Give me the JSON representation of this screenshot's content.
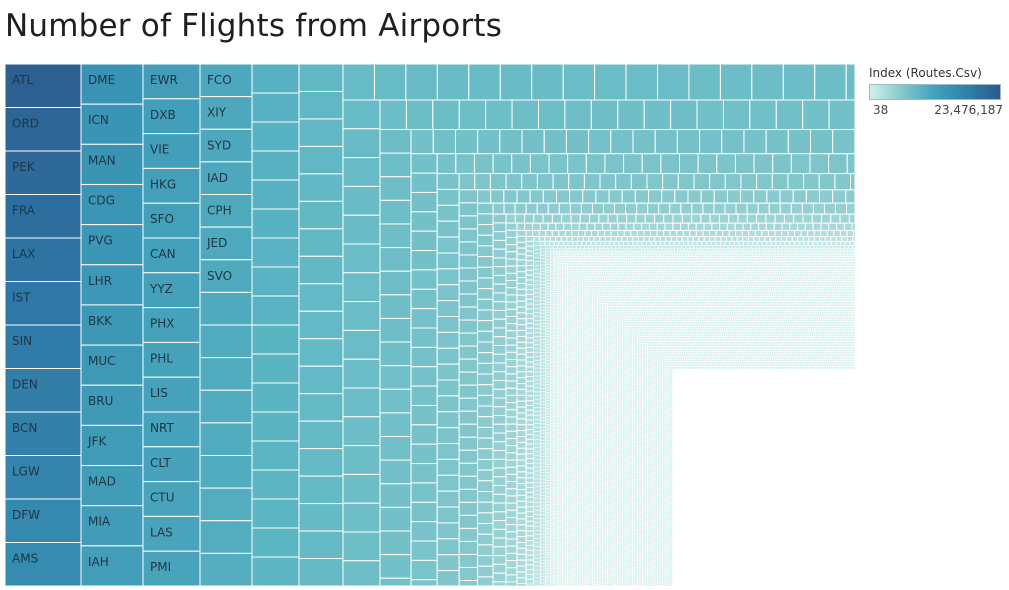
{
  "title": "Number of Flights from Airports",
  "legend": {
    "title": "Index (Routes.Csv)",
    "min_label": "38",
    "max_label": "23,476,187",
    "min_color": "#d4efec",
    "max_color": "#2c5a8c"
  },
  "chart_data": {
    "type": "treemap",
    "title": "Number of Flights from Airports",
    "color_legend": {
      "title": "Index (Routes.Csv)",
      "min": 38,
      "max": 23476187
    },
    "labeled_airports": [
      "ATL",
      "ORD",
      "PEK",
      "FRA",
      "LAX",
      "IST",
      "SIN",
      "DEN",
      "BCN",
      "LGW",
      "DFW",
      "AMS",
      "DME",
      "ICN",
      "MAN",
      "CDG",
      "PVG",
      "LHR",
      "BKK",
      "MUC",
      "BRU",
      "JFK",
      "MAD",
      "MIA",
      "IAH",
      "EWR",
      "DXB",
      "VIE",
      "HKG",
      "SFO",
      "CAN",
      "YYZ",
      "PHX",
      "PHL",
      "LIS",
      "NRT",
      "CLT",
      "CTU",
      "LAS",
      "PMI",
      "FCO",
      "XIY",
      "SYD",
      "IAD",
      "CPH",
      "JED",
      "SVO"
    ]
  }
}
